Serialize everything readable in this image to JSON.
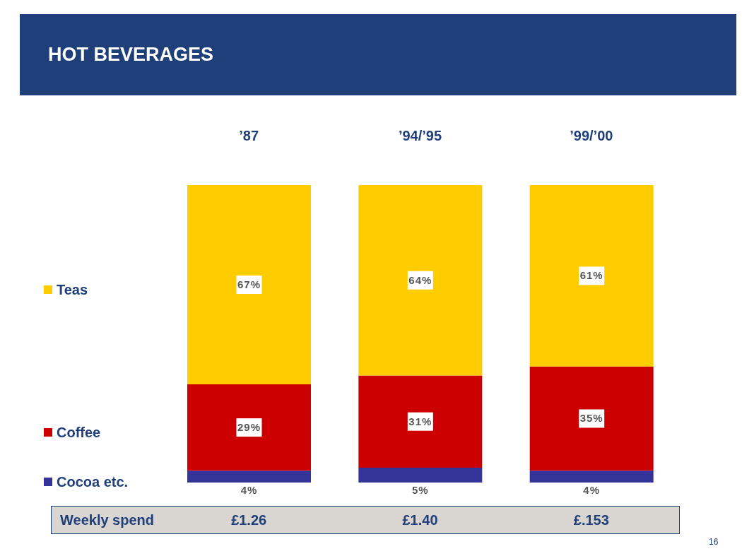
{
  "chart_data": {
    "type": "bar",
    "title": "HOT BEVERAGES",
    "categories": [
      "’87",
      "’94/’95",
      "’99/’00"
    ],
    "stacked": true,
    "series": [
      {
        "name": "Cocoa etc.",
        "color": "#333399",
        "values": [
          4,
          5,
          4
        ],
        "value_labels": [
          "4%",
          "5%",
          "4%"
        ]
      },
      {
        "name": "Coffee",
        "color": "#cc0000",
        "values": [
          29,
          31,
          35
        ],
        "value_labels": [
          "29%",
          "31%",
          "35%"
        ]
      },
      {
        "name": "Teas",
        "color": "#ffcc00",
        "values": [
          67,
          64,
          61
        ],
        "value_labels": [
          "67%",
          "64%",
          "61%"
        ]
      }
    ],
    "legend": "left",
    "annotations": [
      "Weekly spend",
      "£1.26",
      "£1.40",
      "£.153",
      "16"
    ]
  }
}
